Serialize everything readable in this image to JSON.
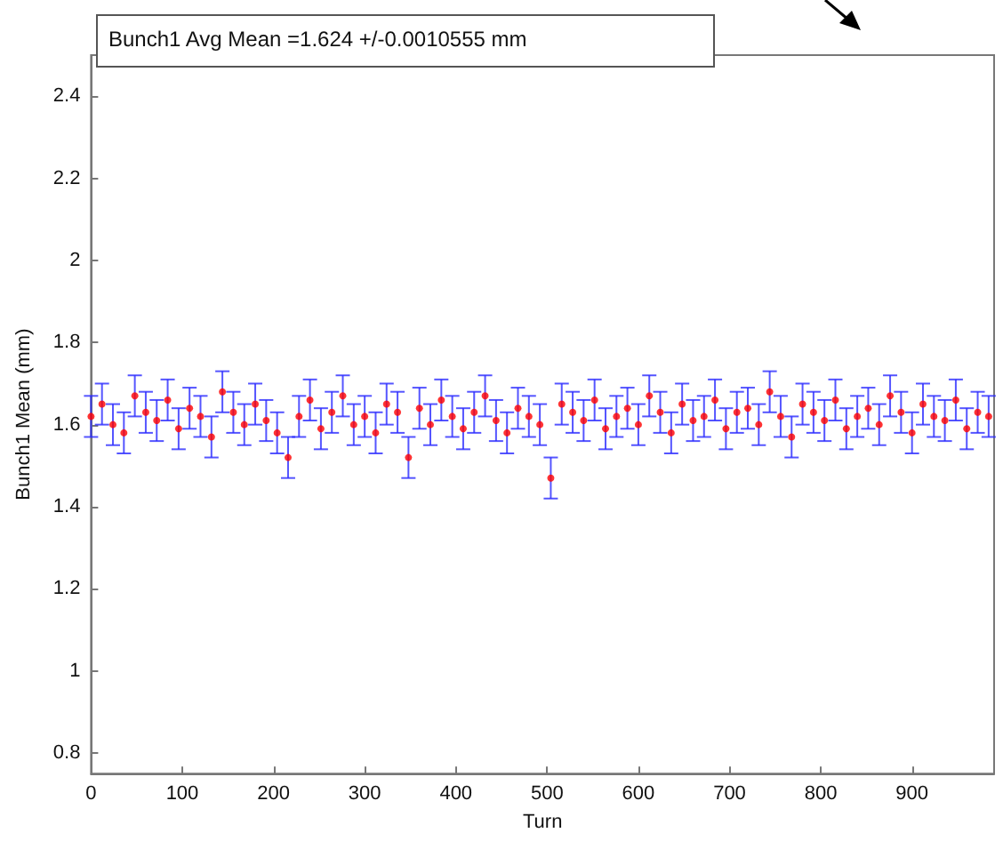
{
  "chart_data": {
    "type": "scatter",
    "xlabel": "Turn",
    "ylabel": "Bunch1 Mean (mm)",
    "annotations": [
      "Bunch1 Avg Mean =1.624 +/-0.0010555 mm"
    ],
    "x": [
      0,
      12,
      24,
      36,
      48,
      60,
      72,
      84,
      96,
      108,
      120,
      132,
      144,
      156,
      168,
      180,
      192,
      204,
      216,
      228,
      240,
      252,
      264,
      276,
      288,
      300,
      312,
      324,
      336,
      348,
      360,
      372,
      384,
      396,
      408,
      420,
      432,
      444,
      456,
      468,
      480,
      492,
      504,
      516,
      528,
      540,
      552,
      564,
      576,
      588,
      600,
      612,
      624,
      636,
      648,
      660,
      672,
      684,
      696,
      708,
      720,
      732,
      744,
      756,
      768,
      780,
      792,
      804,
      816,
      828,
      840,
      852,
      864,
      876,
      888,
      900,
      912,
      924,
      936,
      948,
      960,
      972,
      984
    ],
    "series": [
      {
        "color": "#ff0000",
        "values": [
          1.62,
          1.65,
          1.6,
          1.58,
          1.67,
          1.63,
          1.61,
          1.66,
          1.59,
          1.64,
          1.62,
          1.57,
          1.68,
          1.63,
          1.6,
          1.65,
          1.61,
          1.58,
          1.52,
          1.62,
          1.66,
          1.59,
          1.63,
          1.67,
          1.6,
          1.62,
          1.58,
          1.65,
          1.63,
          1.52,
          1.64,
          1.6,
          1.66,
          1.62,
          1.59,
          1.63,
          1.67,
          1.61,
          1.58,
          1.64,
          1.62,
          1.6,
          1.47,
          1.65,
          1.63,
          1.61,
          1.66,
          1.59,
          1.62,
          1.64,
          1.6,
          1.67,
          1.63,
          1.58,
          1.65,
          1.61,
          1.62,
          1.66,
          1.59,
          1.63,
          1.64,
          1.6,
          1.68,
          1.62,
          1.57,
          1.65,
          1.63,
          1.61,
          1.66,
          1.59,
          1.62,
          1.64,
          1.6,
          1.67,
          1.63,
          1.58,
          1.65,
          1.62,
          1.61,
          1.66,
          1.59,
          1.63,
          1.62
        ],
        "errors": [
          0.05,
          0.05,
          0.05,
          0.05,
          0.05,
          0.05,
          0.05,
          0.05,
          0.05,
          0.05,
          0.05,
          0.05,
          0.05,
          0.05,
          0.05,
          0.05,
          0.05,
          0.05,
          0.05,
          0.05,
          0.05,
          0.05,
          0.05,
          0.05,
          0.05,
          0.05,
          0.05,
          0.05,
          0.05,
          0.05,
          0.05,
          0.05,
          0.05,
          0.05,
          0.05,
          0.05,
          0.05,
          0.05,
          0.05,
          0.05,
          0.05,
          0.05,
          0.05,
          0.05,
          0.05,
          0.05,
          0.05,
          0.05,
          0.05,
          0.05,
          0.05,
          0.05,
          0.05,
          0.05,
          0.05,
          0.05,
          0.05,
          0.05,
          0.05,
          0.05,
          0.05,
          0.05,
          0.05,
          0.05,
          0.05,
          0.05,
          0.05,
          0.05,
          0.05,
          0.05,
          0.05,
          0.05,
          0.05,
          0.05,
          0.05,
          0.05,
          0.05,
          0.05,
          0.05,
          0.05,
          0.05,
          0.05,
          0.05
        ]
      }
    ],
    "xlim": [
      0,
      990
    ],
    "xticks": [
      0,
      100,
      200,
      300,
      400,
      500,
      600,
      700,
      800,
      900
    ],
    "ylim": [
      0.75,
      2.5
    ],
    "yticks": [
      0.8,
      1,
      1.2,
      1.4,
      1.6,
      1.8,
      2,
      2.2,
      2.4
    ],
    "grid": false,
    "marker": "circle"
  }
}
